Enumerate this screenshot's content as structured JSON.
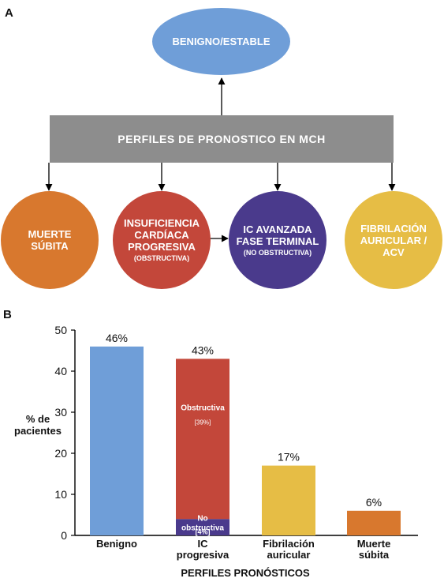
{
  "panel_a": {
    "letter": "A",
    "top_node": "BENIGNO/ESTABLE",
    "banner": "PERFILES DE PRONOSTICO EN MCH",
    "nodes": [
      {
        "main": "MUERTE\nSÚBITA",
        "sub": "",
        "color": "#d8782e"
      },
      {
        "main": "INSUFICIENCIA\nCARDÍACA\nPROGRESIVA",
        "sub": "(OBSTRUCTIVA)",
        "color": "#c3473a"
      },
      {
        "main": "IC AVANZADA\nFASE TERMINAL",
        "sub": "(NO OBSTRUCTIVA)",
        "color": "#4a3a8c"
      },
      {
        "main": "FIBRILACIÓN\nAURICULAR /\nACV",
        "sub": "",
        "color": "#e6bd45"
      }
    ],
    "colors": {
      "top_node": "#6f9ed8",
      "banner": "#8d8d8d"
    }
  },
  "panel_b": {
    "letter": "B"
  },
  "chart_data": {
    "type": "bar",
    "categories": [
      "Benigno",
      "IC\nprogresiva",
      "Fibrilación\nauricular",
      "Muerte\nsúbita"
    ],
    "values": [
      46,
      43,
      17,
      6
    ],
    "value_labels": [
      "46%",
      "43%",
      "17%",
      "6%"
    ],
    "colors": [
      "#6f9ed8",
      "#c3473a",
      "#e6bd45",
      "#d8782e"
    ],
    "stacked_segments": {
      "category": "IC\nprogresiva",
      "segments": [
        {
          "name": "No\nobstructiva",
          "value": 4,
          "label": "[4%]",
          "color": "#4a3a8c"
        },
        {
          "name": "Obstructiva",
          "value": 39,
          "label": "[39%]",
          "color": "#c3473a"
        }
      ]
    },
    "ylabel": "% de\npacientes",
    "xlabel": "PERFILES PRONÓSTICOS",
    "yticks": [
      0,
      10,
      20,
      30,
      40,
      50
    ],
    "ylim": [
      0,
      50
    ],
    "grid": false
  }
}
